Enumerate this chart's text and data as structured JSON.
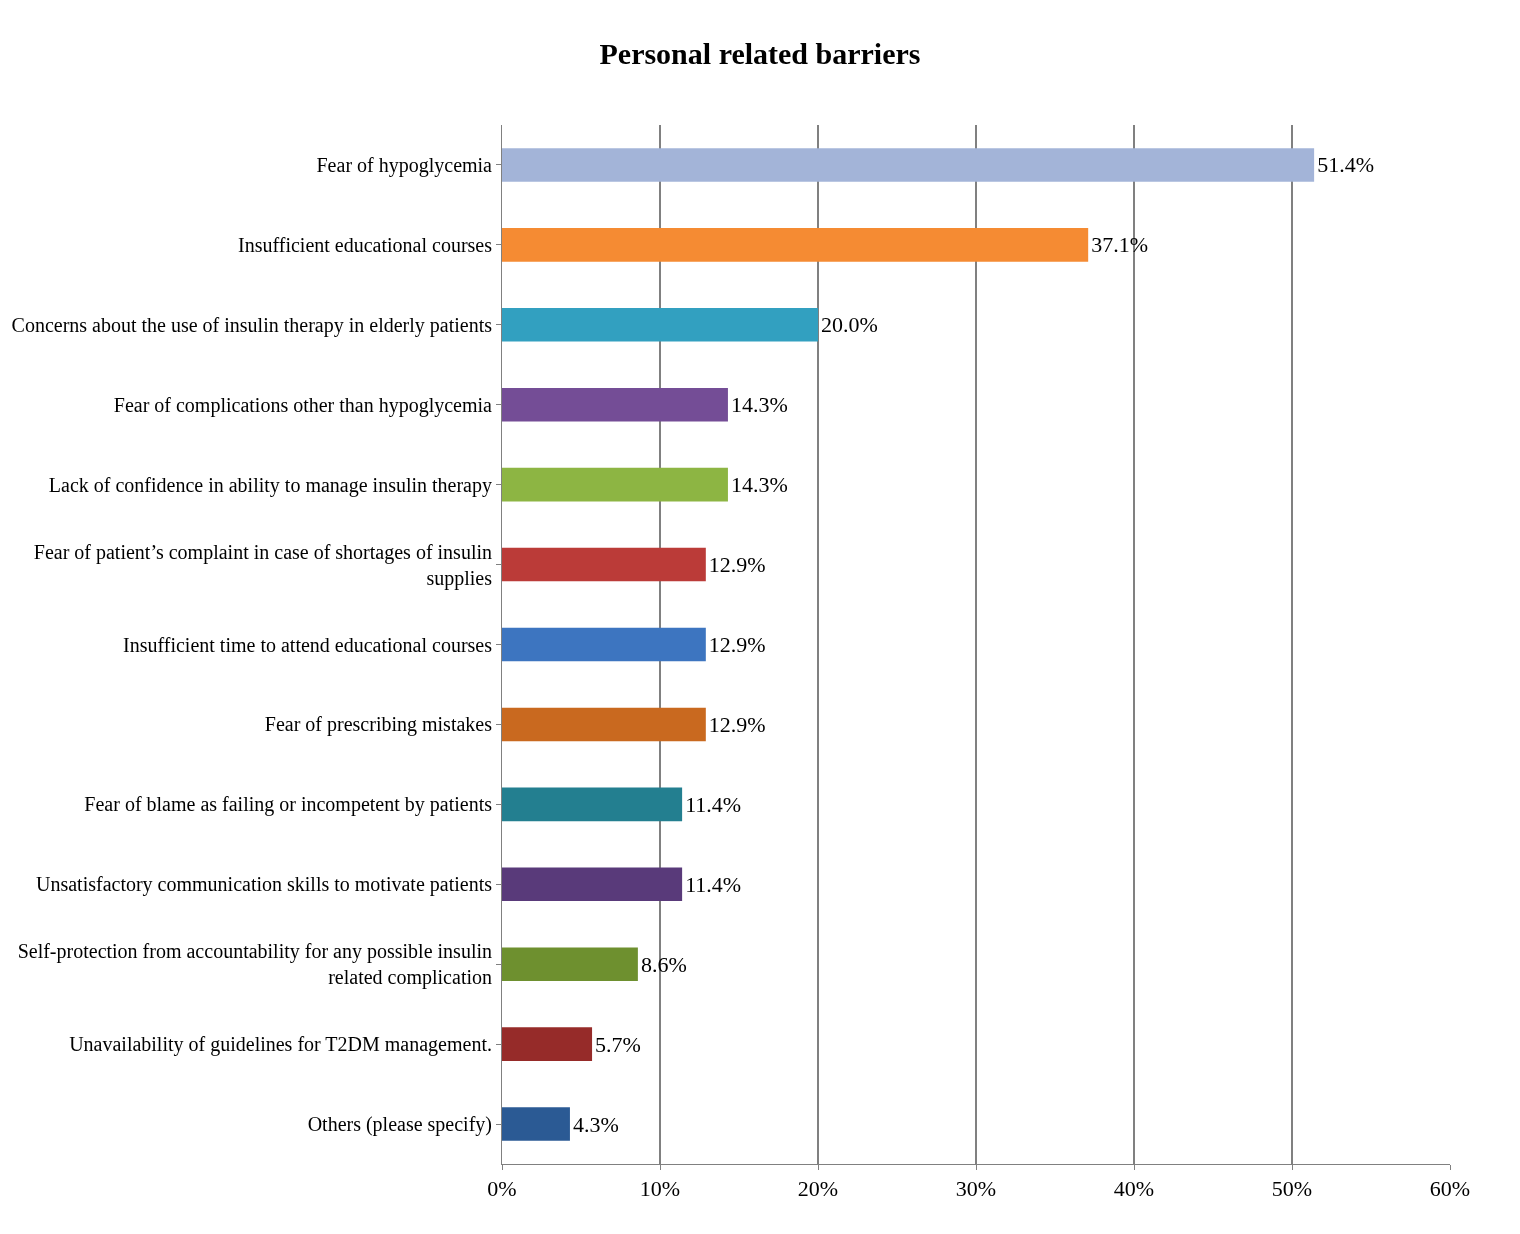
{
  "chart_data": {
    "type": "bar",
    "orientation": "horizontal",
    "title": "Personal related barriers",
    "categories": [
      "Fear of hypoglycemia",
      "Insufficient educational courses",
      "Concerns about the use of insulin therapy in elderly patients",
      "Fear of complications other than hypoglycemia",
      "Lack of confidence in ability to manage insulin therapy",
      "Fear of patient’s complaint in case of shortages of insulin supplies",
      "Insufficient time to attend educational courses",
      "Fear of prescribing mistakes",
      "Fear of blame as failing or incompetent by patients",
      "Unsatisfactory communication skills to motivate patients",
      "Self-protection from accountability for any possible insulin related complication",
      "Unavailability of guidelines for T2DM management.",
      "Others (please specify)"
    ],
    "values": [
      51.4,
      37.1,
      20.0,
      14.3,
      14.3,
      12.9,
      12.9,
      12.9,
      11.4,
      11.4,
      8.6,
      5.7,
      4.3
    ],
    "value_labels": [
      "51.4%",
      "37.1%",
      "20.0%",
      "14.3%",
      "14.3%",
      "12.9%",
      "12.9%",
      "12.9%",
      "11.4%",
      "11.4%",
      "8.6%",
      "5.7%",
      "4.3%"
    ],
    "colors": [
      "#a3b4d8",
      "#f58b33",
      "#32a0c0",
      "#744d96",
      "#8db543",
      "#bb3b38",
      "#3d75c0",
      "#c9691f",
      "#237f90",
      "#593a7a",
      "#6e902f",
      "#962b29",
      "#2b5a94"
    ],
    "xlim": [
      0,
      60
    ],
    "xticks": [
      {
        "value": 0,
        "label": "0%"
      },
      {
        "value": 10,
        "label": "10%"
      },
      {
        "value": 20,
        "label": "20%"
      },
      {
        "value": 30,
        "label": "30%"
      },
      {
        "value": 40,
        "label": "40%"
      },
      {
        "value": 50,
        "label": "50%"
      },
      {
        "value": 60,
        "label": "60%"
      }
    ],
    "grid": "x"
  }
}
